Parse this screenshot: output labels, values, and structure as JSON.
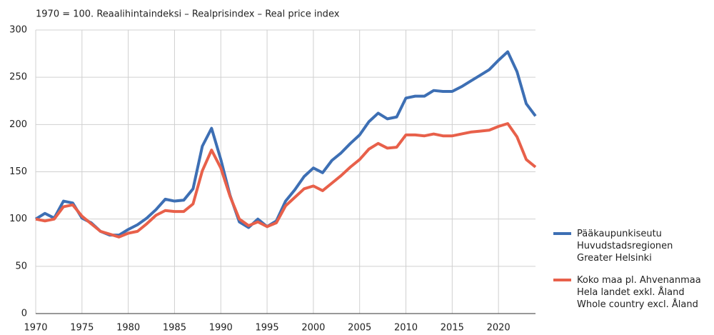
{
  "chart_data": {
    "type": "line",
    "title": "1970 = 100. Reaalihintaindeksi – Realprisindex – Real price index",
    "x": [
      1970,
      1971,
      1972,
      1973,
      1974,
      1975,
      1976,
      1977,
      1978,
      1979,
      1980,
      1981,
      1982,
      1983,
      1984,
      1985,
      1986,
      1987,
      1988,
      1989,
      1990,
      1991,
      1992,
      1993,
      1994,
      1995,
      1996,
      1997,
      1998,
      1999,
      2000,
      2001,
      2002,
      2003,
      2004,
      2005,
      2006,
      2007,
      2008,
      2009,
      2010,
      2011,
      2012,
      2013,
      2014,
      2015,
      2016,
      2017,
      2018,
      2019,
      2020,
      2021,
      2022,
      2023,
      2024
    ],
    "series": [
      {
        "name": "Pääkaupunkiseutu\nHuvudstadsregionen\nGreater Helsinki",
        "color": "#3d6fb4",
        "values": [
          100,
          106,
          101,
          119,
          117,
          101,
          96,
          87,
          83,
          83,
          89,
          94,
          101,
          110,
          121,
          119,
          120,
          132,
          177,
          196,
          163,
          125,
          97,
          91,
          100,
          92,
          98,
          119,
          131,
          145,
          154,
          149,
          162,
          170,
          180,
          189,
          203,
          212,
          206,
          208,
          228,
          230,
          230,
          236,
          235,
          235,
          240,
          246,
          252,
          258,
          268,
          277,
          256,
          222,
          209
        ]
      },
      {
        "name": "Koko maa pl. Ahvenanmaa\nHela landet exkl. Åland\nWhole country excl. Åland",
        "color": "#e8604a",
        "values": [
          100,
          98,
          100,
          113,
          115,
          103,
          95,
          87,
          84,
          81,
          85,
          87,
          95,
          104,
          109,
          108,
          108,
          116,
          151,
          173,
          154,
          124,
          100,
          93,
          97,
          92,
          96,
          114,
          123,
          132,
          135,
          130,
          138,
          146,
          155,
          163,
          174,
          180,
          175,
          176,
          189,
          189,
          188,
          190,
          188,
          188,
          190,
          192,
          193,
          194,
          198,
          201,
          187,
          163,
          155
        ]
      }
    ],
    "xlim": [
      1970,
      2024
    ],
    "xticks": [
      1970,
      1975,
      1980,
      1985,
      1990,
      1995,
      2000,
      2005,
      2010,
      2015,
      2020
    ],
    "ylim": [
      0,
      300
    ],
    "yticks": [
      0,
      50,
      100,
      150,
      200,
      250,
      300
    ],
    "grid": true
  }
}
